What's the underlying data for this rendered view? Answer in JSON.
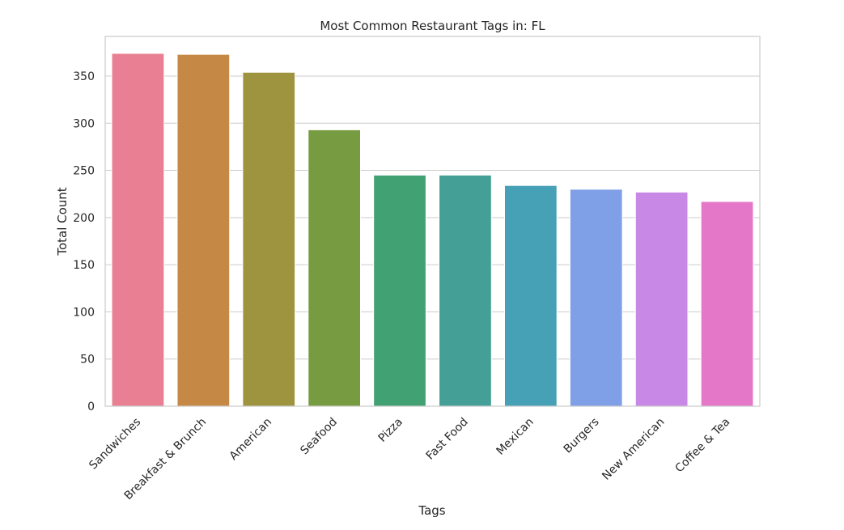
{
  "chart_data": {
    "type": "bar",
    "title": "Most Common Restaurant Tags in: FL",
    "xlabel": "Tags",
    "ylabel": "Total Count",
    "categories": [
      "Sandwiches",
      "Breakfast & Brunch",
      "American",
      "Seafood",
      "Pizza",
      "Fast Food",
      "Mexican",
      "Burgers",
      "New American",
      "Coffee & Tea"
    ],
    "values": [
      374,
      373,
      354,
      293,
      245,
      245,
      234,
      230,
      227,
      217
    ],
    "colors": [
      "#e87f92",
      "#c68945",
      "#9e933e",
      "#779b40",
      "#42a173",
      "#449f96",
      "#47a1b6",
      "#7f9fe6",
      "#c888e6",
      "#e577c8"
    ],
    "ylim": [
      0,
      392
    ],
    "yticks": [
      0,
      50,
      100,
      150,
      200,
      250,
      300,
      350
    ],
    "grid": true,
    "legend": "none"
  }
}
